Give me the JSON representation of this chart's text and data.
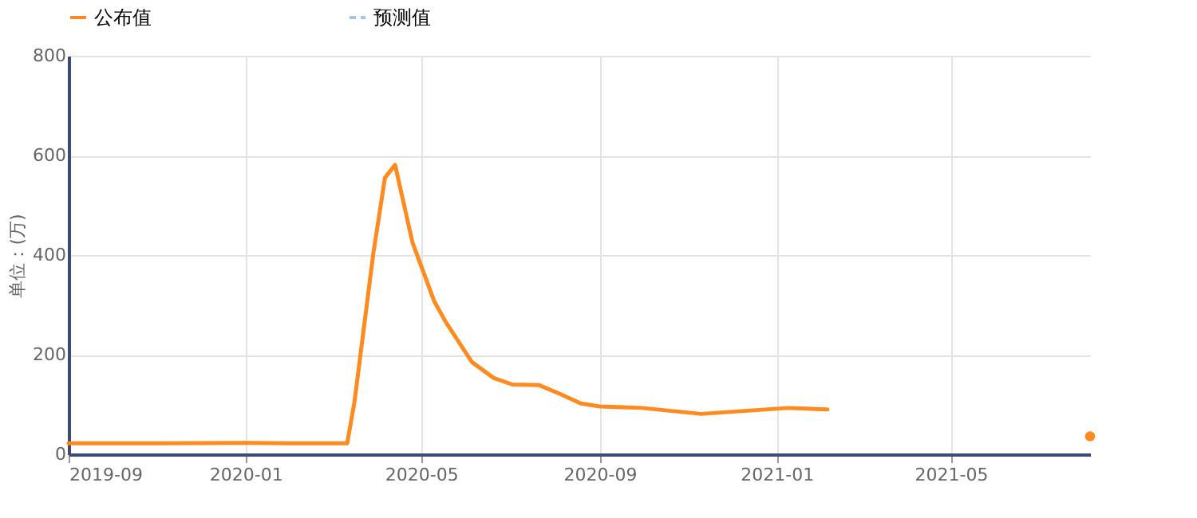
{
  "chart_data": {
    "type": "line",
    "ylabel": "单位：(万)",
    "x": [
      "2019-09-01",
      "2019-11-01",
      "2020-01-01",
      "2020-02-01",
      "2020-03-11",
      "2020-03-16",
      "2020-03-29",
      "2020-04-06",
      "2020-04-13",
      "2020-04-25",
      "2020-05-10",
      "2020-05-18",
      "2020-06-05",
      "2020-06-20",
      "2020-07-03",
      "2020-07-21",
      "2020-08-04",
      "2020-08-19",
      "2020-09-01",
      "2020-09-30",
      "2020-11-10",
      "2021-01-09",
      "2021-02-05",
      "2021-05-01",
      "2021-08-05"
    ],
    "series": [
      {
        "name": "公布值",
        "color": "#ff8a1f",
        "line_style": "solid",
        "values": [
          22,
          22,
          23,
          22,
          22,
          105,
          403,
          555,
          581,
          425,
          307,
          265,
          185,
          153,
          140,
          139,
          122,
          102,
          96,
          93,
          81,
          93,
          90,
          null,
          36
        ]
      },
      {
        "name": "预测值",
        "color": "#9cc8ee",
        "line_style": "dashed",
        "values": [
          null,
          null,
          null,
          null,
          null,
          null,
          null,
          null,
          null,
          null,
          null,
          null,
          null,
          null,
          null,
          null,
          null,
          null,
          null,
          null,
          null,
          null,
          null,
          null,
          null
        ]
      }
    ],
    "xlim": [
      "2019-09-01",
      "2021-08-05"
    ],
    "xticks": [
      "2019-09",
      "2020-01",
      "2020-05",
      "2020-09",
      "2021-01",
      "2021-05"
    ],
    "ylim": [
      0,
      800
    ],
    "yticks": [
      0,
      200,
      400,
      600,
      800
    ],
    "grid": true,
    "legend": "top",
    "marker": "none"
  }
}
